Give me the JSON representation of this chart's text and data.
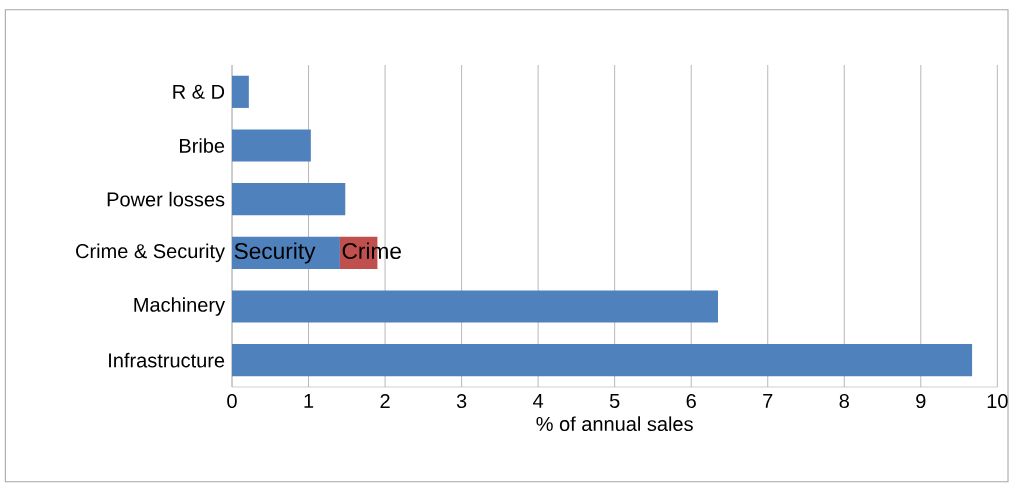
{
  "chart_data": {
    "type": "bar",
    "orientation": "horizontal",
    "stacked": true,
    "xlabel": "% of annual sales",
    "categories": [
      "R & D",
      "Bribe",
      "Power losses",
      "Crime & Security",
      "Machinery",
      "Infrastructure"
    ],
    "series": [
      {
        "color": "#4f81bd",
        "values": [
          0.22,
          1.03,
          1.48,
          1.41,
          6.35,
          9.67
        ]
      },
      {
        "color": "#c0504d",
        "values": [
          null,
          null,
          null,
          0.49,
          null,
          null
        ]
      }
    ],
    "annotations": [
      {
        "text": "Security",
        "x": 0,
        "y": "Crime & Security"
      },
      {
        "text": "Crime",
        "x": 1.41,
        "y": "Crime & Security"
      }
    ],
    "xlim": [
      0,
      10
    ],
    "xticks": [
      0,
      1,
      2,
      3,
      4,
      5,
      6,
      7,
      8,
      9,
      10
    ],
    "grid": "x"
  }
}
